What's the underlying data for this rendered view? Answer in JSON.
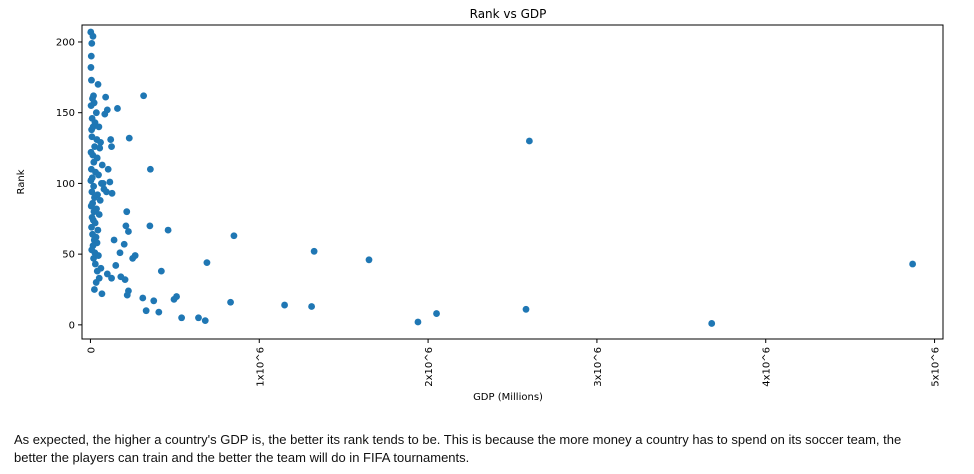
{
  "chart_data": {
    "type": "scatter",
    "title": "Rank vs GDP",
    "xlabel": "GDP (Millions)",
    "ylabel": "Rank",
    "xlim": [
      -50000,
      5050000
    ],
    "ylim": [
      -10,
      212
    ],
    "x_ticks": [
      0,
      1000000,
      2000000,
      3000000,
      4000000,
      5000000
    ],
    "x_tick_labels": [
      "0",
      "1x10^6",
      "2x10^6",
      "3x10^6",
      "4x10^6",
      "5x10^6"
    ],
    "y_ticks": [
      0,
      50,
      100,
      150,
      200
    ],
    "y_tick_labels": [
      "0",
      "50",
      "100",
      "150",
      "200"
    ],
    "grid": false,
    "legend": "none",
    "marker_color": "#1f77b4",
    "series": [
      {
        "points": [
          [
            2000,
            207
          ],
          [
            15000,
            204
          ],
          [
            8000,
            199
          ],
          [
            5000,
            190
          ],
          [
            3000,
            182
          ],
          [
            6000,
            173
          ],
          [
            45000,
            170
          ],
          [
            18000,
            162
          ],
          [
            12000,
            160
          ],
          [
            22000,
            157
          ],
          [
            4000,
            155
          ],
          [
            35000,
            150
          ],
          [
            10000,
            146
          ],
          [
            27000,
            143
          ],
          [
            16000,
            140
          ],
          [
            7000,
            138
          ],
          [
            50000,
            140
          ],
          [
            9000,
            133
          ],
          [
            38000,
            131
          ],
          [
            60000,
            129
          ],
          [
            25000,
            126
          ],
          [
            55000,
            125
          ],
          [
            3500,
            122
          ],
          [
            14000,
            120
          ],
          [
            40000,
            118
          ],
          [
            20000,
            115
          ],
          [
            70000,
            113
          ],
          [
            5500,
            110
          ],
          [
            30000,
            108
          ],
          [
            48000,
            106
          ],
          [
            11000,
            104
          ],
          [
            2500,
            102
          ],
          [
            65000,
            100
          ],
          [
            19000,
            98
          ],
          [
            80000,
            96
          ],
          [
            8500,
            94
          ],
          [
            42000,
            92
          ],
          [
            24000,
            90
          ],
          [
            58000,
            88
          ],
          [
            13000,
            86
          ],
          [
            4500,
            84
          ],
          [
            36000,
            82
          ],
          [
            21000,
            80
          ],
          [
            52000,
            78
          ],
          [
            9500,
            76
          ],
          [
            17000,
            74
          ],
          [
            28000,
            72
          ],
          [
            6500,
            69
          ],
          [
            44000,
            67
          ],
          [
            12500,
            64
          ],
          [
            33000,
            62
          ],
          [
            22500,
            60
          ],
          [
            39000,
            58
          ],
          [
            15500,
            56
          ],
          [
            7500,
            53
          ],
          [
            26000,
            51
          ],
          [
            47000,
            49
          ],
          [
            18500,
            47
          ],
          [
            29000,
            43
          ],
          [
            62000,
            40
          ],
          [
            40500,
            38
          ],
          [
            52000,
            33
          ],
          [
            34000,
            30
          ],
          [
            23500,
            25
          ],
          [
            68000,
            22
          ],
          [
            90000,
            161
          ],
          [
            85000,
            149
          ],
          [
            100000,
            152
          ],
          [
            160000,
            153
          ],
          [
            120000,
            131
          ],
          [
            125000,
            126
          ],
          [
            230000,
            132
          ],
          [
            105000,
            110
          ],
          [
            115000,
            101
          ],
          [
            75000,
            100
          ],
          [
            95000,
            94
          ],
          [
            128000,
            93
          ],
          [
            215000,
            80
          ],
          [
            210000,
            70
          ],
          [
            225000,
            66
          ],
          [
            140000,
            60
          ],
          [
            200000,
            57
          ],
          [
            265000,
            49
          ],
          [
            175000,
            51
          ],
          [
            250000,
            47
          ],
          [
            150000,
            42
          ],
          [
            100000,
            36
          ],
          [
            125000,
            33
          ],
          [
            180000,
            34
          ],
          [
            205000,
            32
          ],
          [
            225000,
            24
          ],
          [
            218000,
            21
          ],
          [
            315000,
            162
          ],
          [
            355000,
            110
          ],
          [
            352000,
            70
          ],
          [
            460000,
            67
          ],
          [
            420000,
            38
          ],
          [
            310000,
            19
          ],
          [
            375000,
            17
          ],
          [
            330000,
            10
          ],
          [
            405000,
            9
          ],
          [
            510000,
            20
          ],
          [
            540000,
            5
          ],
          [
            495000,
            18
          ],
          [
            640000,
            5
          ],
          [
            680000,
            3
          ],
          [
            690000,
            44
          ],
          [
            830000,
            16
          ],
          [
            850000,
            63
          ],
          [
            1150000,
            14
          ],
          [
            1310000,
            13
          ],
          [
            1325000,
            52
          ],
          [
            1650000,
            46
          ],
          [
            1940000,
            2
          ],
          [
            2050000,
            8
          ],
          [
            2580000,
            11
          ],
          [
            2600000,
            130
          ],
          [
            3680000,
            1
          ],
          [
            4870000,
            43
          ]
        ]
      }
    ]
  },
  "caption": {
    "line1": "As expected, the higher a country's GDP is, the better its rank tends to be. This is because the more money a country has to spend on its soccer team, the",
    "line2": "better the players can train and the better the team will do in FIFA tournaments."
  }
}
